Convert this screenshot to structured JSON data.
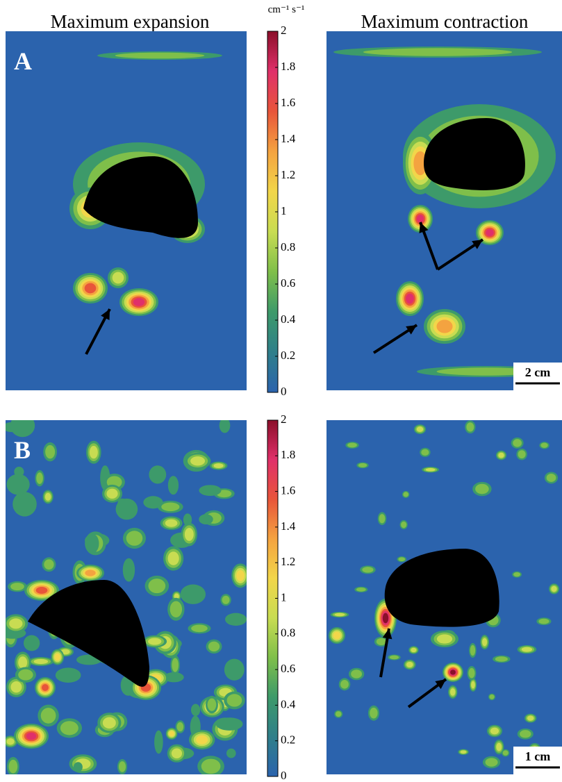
{
  "column_titles": [
    "Maximum expansion",
    "Maximum contraction"
  ],
  "colorbar": {
    "unit": "cm⁻¹ s⁻¹",
    "lim": [
      0,
      2
    ],
    "ticks": [
      0,
      0.2,
      0.4,
      0.6,
      0.8,
      1,
      1.2,
      1.4,
      1.6,
      1.8,
      2
    ],
    "colors": [
      "#2b63ad",
      "#2f7f8a",
      "#3d9a6a",
      "#7fbf4a",
      "#c8dc52",
      "#f2d64a",
      "#f4a340",
      "#e8553a",
      "#e0306a",
      "#8b0f2a"
    ]
  },
  "panels": [
    {
      "label": "A",
      "scale_bar": "2 cm"
    },
    {
      "label": "B",
      "scale_bar": "1 cm"
    }
  ]
}
